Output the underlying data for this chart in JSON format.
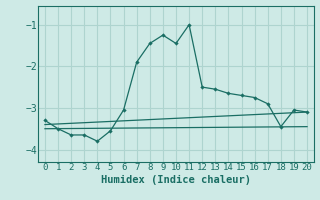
{
  "xlabel": "Humidex (Indice chaleur)",
  "bg_color": "#ceeae6",
  "grid_color": "#aed4cf",
  "line_color": "#1a6e64",
  "xlim": [
    -0.5,
    20.5
  ],
  "ylim": [
    -4.3,
    -0.55
  ],
  "yticks": [
    -4,
    -3,
    -2,
    -1
  ],
  "xticks": [
    0,
    1,
    2,
    3,
    4,
    5,
    6,
    7,
    8,
    9,
    10,
    11,
    12,
    13,
    14,
    15,
    16,
    17,
    18,
    19,
    20
  ],
  "main_x": [
    0,
    1,
    2,
    3,
    4,
    5,
    6,
    7,
    8,
    9,
    10,
    11,
    12,
    13,
    14,
    15,
    16,
    17,
    18,
    19,
    20
  ],
  "main_y": [
    -3.3,
    -3.5,
    -3.65,
    -3.65,
    -3.8,
    -3.55,
    -3.05,
    -1.9,
    -1.45,
    -1.25,
    -1.45,
    -1.0,
    -2.5,
    -2.55,
    -2.65,
    -2.7,
    -2.75,
    -2.9,
    -3.45,
    -3.05,
    -3.1
  ],
  "line2_x": [
    0,
    20
  ],
  "line2_y": [
    -3.4,
    -3.1
  ],
  "line3_x": [
    0,
    20
  ],
  "line3_y": [
    -3.5,
    -3.45
  ],
  "fontsize_label": 7.5,
  "fontsize_tick": 6.5
}
